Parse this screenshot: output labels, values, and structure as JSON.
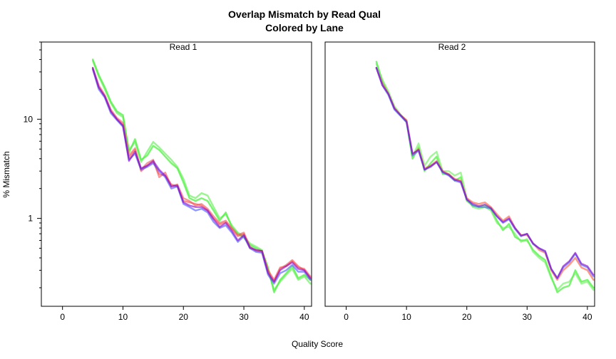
{
  "figure": {
    "title_line1": "Overlap Mismatch by Read Qual",
    "title_line2": "Colored by Lane",
    "xlabel": "Quality Score",
    "ylabel": "% Mismatch"
  },
  "chart_data": {
    "type": "line",
    "title": "Overlap Mismatch by Read Qual\nColored by Lane",
    "xlabel": "Quality Score",
    "ylabel": "% Mismatch",
    "y_scale": "log",
    "xlim": [
      -3.5,
      41.2
    ],
    "ylim": [
      0.13,
      60
    ],
    "x_ticks": [
      0,
      10,
      20,
      30,
      40
    ],
    "y_ticks": [
      1,
      10
    ],
    "y_tick_labels": [
      "1",
      "10"
    ],
    "grid": false,
    "legend": "none",
    "x": [
      5,
      6,
      7,
      8,
      9,
      10,
      11,
      12,
      13,
      14,
      15,
      16,
      17,
      18,
      19,
      20,
      21,
      22,
      23,
      24,
      25,
      26,
      27,
      28,
      29,
      30,
      31,
      32,
      33,
      34,
      35,
      36,
      37,
      38,
      39,
      40,
      41
    ],
    "panels": [
      {
        "strip": "Read 1",
        "series": [
          {
            "color": "#22ee11",
            "values": [
              40,
              28,
              21,
              15,
              12,
              11,
              4.6,
              6.3,
              3.9,
              4.3,
              5.4,
              4.9,
              4.2,
              3.6,
              3.2,
              2.3,
              1.6,
              1.5,
              1.6,
              1.5,
              1.2,
              0.95,
              1.15,
              0.82,
              0.7,
              0.64,
              0.54,
              0.5,
              0.47,
              0.32,
              0.18,
              0.24,
              0.28,
              0.33,
              0.25,
              0.27,
              0.24
            ]
          },
          {
            "color": "#55ee44",
            "values": [
              39,
              27,
              20,
              14.5,
              11.5,
              10.5,
              4.9,
              5.9,
              3.7,
              4.7,
              5.9,
              5.2,
              4.5,
              3.9,
              3.3,
              2.5,
              1.7,
              1.6,
              1.8,
              1.7,
              1.3,
              1.0,
              1.1,
              0.85,
              0.72,
              0.66,
              0.56,
              0.52,
              0.48,
              0.3,
              0.19,
              0.23,
              0.27,
              0.31,
              0.24,
              0.26,
              0.22
            ]
          },
          {
            "color": "#ff4444",
            "values": [
              32,
              21,
              17,
              12,
              10,
              8.8,
              4.1,
              4.9,
              3.0,
              3.4,
              3.7,
              2.8,
              2.7,
              2.2,
              2.1,
              1.5,
              1.45,
              1.4,
              1.35,
              1.2,
              1.0,
              0.87,
              0.92,
              0.78,
              0.66,
              0.7,
              0.5,
              0.48,
              0.47,
              0.3,
              0.24,
              0.32,
              0.33,
              0.37,
              0.32,
              0.31,
              0.26
            ]
          },
          {
            "color": "#ee5555",
            "values": [
              33,
              22,
              17.5,
              12.5,
              10.3,
              9.2,
              4.3,
              5.1,
              3.1,
              3.6,
              3.9,
              2.6,
              2.9,
              2.1,
              2.2,
              1.6,
              1.5,
              1.35,
              1.4,
              1.25,
              1.05,
              0.9,
              0.95,
              0.8,
              0.68,
              0.72,
              0.52,
              0.47,
              0.46,
              0.29,
              0.23,
              0.31,
              0.34,
              0.38,
              0.33,
              0.3,
              0.25
            ]
          },
          {
            "color": "#4455ff",
            "values": [
              32,
              20,
              16.5,
              11.5,
              9.8,
              8.4,
              3.9,
              4.5,
              3.1,
              3.3,
              3.6,
              3.0,
              2.6,
              2.0,
              2.1,
              1.4,
              1.3,
              1.2,
              1.25,
              1.15,
              0.92,
              0.8,
              0.85,
              0.72,
              0.58,
              0.66,
              0.5,
              0.46,
              0.45,
              0.27,
              0.22,
              0.28,
              0.3,
              0.34,
              0.29,
              0.29,
              0.24
            ]
          },
          {
            "color": "#8800cc",
            "values": [
              33,
              21,
              17,
              12,
              10,
              8.6,
              3.8,
              4.7,
              3.2,
              3.4,
              3.8,
              3.1,
              2.7,
              2.1,
              2.15,
              1.45,
              1.35,
              1.3,
              1.3,
              1.2,
              0.98,
              0.82,
              0.9,
              0.75,
              0.6,
              0.68,
              0.51,
              0.48,
              0.47,
              0.28,
              0.23,
              0.3,
              0.33,
              0.36,
              0.31,
              0.3,
              0.25
            ]
          }
        ]
      },
      {
        "strip": "Read 2",
        "series": [
          {
            "color": "#22ee11",
            "values": [
              38,
              24,
              18,
              13,
              11,
              9.4,
              4.0,
              5.2,
              3.0,
              3.6,
              4.2,
              2.8,
              2.8,
              2.4,
              2.6,
              1.5,
              1.35,
              1.3,
              1.35,
              1.25,
              0.95,
              0.76,
              0.88,
              0.65,
              0.6,
              0.6,
              0.48,
              0.42,
              0.38,
              0.26,
              0.18,
              0.2,
              0.21,
              0.3,
              0.23,
              0.24,
              0.2
            ]
          },
          {
            "color": "#66ee55",
            "values": [
              36,
              25,
              19,
              13.5,
              11.2,
              9.6,
              4.2,
              5.7,
              3.4,
              4.2,
              4.7,
              3.0,
              3.0,
              2.7,
              2.9,
              1.6,
              1.3,
              1.25,
              1.3,
              1.2,
              0.9,
              0.8,
              0.82,
              0.7,
              0.58,
              0.62,
              0.46,
              0.4,
              0.36,
              0.25,
              0.19,
              0.22,
              0.23,
              0.28,
              0.22,
              0.23,
              0.19
            ]
          },
          {
            "color": "#ff5533",
            "values": [
              33,
              23,
              18,
              13,
              11,
              9.8,
              4.4,
              5.0,
              3.2,
              3.4,
              3.8,
              3.0,
              2.8,
              2.5,
              2.4,
              1.6,
              1.45,
              1.4,
              1.45,
              1.3,
              1.1,
              0.95,
              1.05,
              0.8,
              0.68,
              0.68,
              0.56,
              0.48,
              0.45,
              0.3,
              0.24,
              0.3,
              0.34,
              0.4,
              0.32,
              0.3,
              0.24
            ]
          },
          {
            "color": "#4466ff",
            "values": [
              33,
              22,
              17.5,
              12.5,
              10.8,
              9.3,
              4.3,
              4.8,
              3.1,
              3.3,
              3.7,
              2.9,
              2.7,
              2.4,
              2.3,
              1.55,
              1.35,
              1.3,
              1.3,
              1.25,
              1.05,
              0.9,
              0.98,
              0.78,
              0.66,
              0.7,
              0.55,
              0.5,
              0.46,
              0.31,
              0.25,
              0.32,
              0.36,
              0.44,
              0.34,
              0.32,
              0.26
            ]
          },
          {
            "color": "#8800cc",
            "values": [
              33,
              22,
              18,
              12.8,
              11,
              9.5,
              4.5,
              4.9,
              3.1,
              3.35,
              3.7,
              2.95,
              2.75,
              2.45,
              2.35,
              1.55,
              1.4,
              1.33,
              1.38,
              1.27,
              1.05,
              0.92,
              1.0,
              0.8,
              0.67,
              0.7,
              0.56,
              0.5,
              0.47,
              0.31,
              0.25,
              0.33,
              0.37,
              0.45,
              0.35,
              0.33,
              0.27
            ]
          }
        ]
      }
    ]
  }
}
